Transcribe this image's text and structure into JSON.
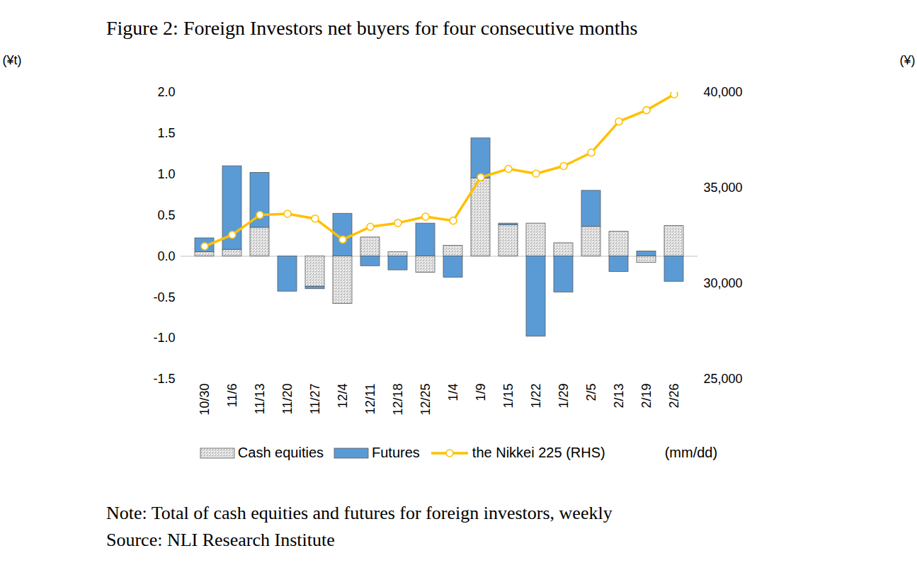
{
  "chart_data": {
    "type": "bar",
    "title": "Figure 2: Foreign Investors net buyers for four consecutive months",
    "stacked": true,
    "categories": [
      "10/30",
      "11/6",
      "11/13",
      "11/20",
      "11/27",
      "12/4",
      "12/11",
      "12/18",
      "12/25",
      "1/4",
      "1/9",
      "1/15",
      "1/22",
      "1/29",
      "2/5",
      "2/13",
      "2/19",
      "2/26"
    ],
    "series": [
      {
        "name": "Cash equities",
        "type": "bar",
        "color": "#bfbfbf",
        "values": [
          0.05,
          0.08,
          0.35,
          0.0,
          -0.37,
          -0.58,
          0.23,
          0.05,
          -0.2,
          0.13,
          0.95,
          0.38,
          0.4,
          0.16,
          0.36,
          0.3,
          -0.08,
          0.37
        ]
      },
      {
        "name": "Futures",
        "type": "bar",
        "color": "#5b9bd5",
        "values": [
          0.17,
          1.02,
          0.67,
          -0.43,
          -0.03,
          0.52,
          -0.12,
          -0.17,
          0.4,
          -0.26,
          0.49,
          0.02,
          -0.98,
          -0.44,
          0.44,
          -0.19,
          0.06,
          -0.31
        ]
      },
      {
        "name": "the Nikkei 225 (RHS)",
        "type": "line",
        "axis": "y2",
        "color": "#ffc000",
        "marker": "circle",
        "values": [
          31950,
          32550,
          33590,
          33650,
          33400,
          32300,
          32970,
          33170,
          33500,
          33290,
          35560,
          36000,
          35750,
          36150,
          36850,
          38480,
          39070,
          39900
        ]
      }
    ],
    "y_label": "(¥t)",
    "y2_label": "(¥)",
    "x_label": "(mm/dd)",
    "ylim": [
      -1.5,
      2.0
    ],
    "yticks": [
      {
        "value": -1.5,
        "label": "-1.5"
      },
      {
        "value": -1.0,
        "label": "-1.0"
      },
      {
        "value": -0.5,
        "label": "-0.5"
      },
      {
        "value": 0,
        "label": "0.0"
      },
      {
        "value": 0.5,
        "label": "0.5"
      },
      {
        "value": 1.0,
        "label": "1.0"
      },
      {
        "value": 1.5,
        "label": "1.5"
      },
      {
        "value": 2.0,
        "label": "2.0"
      }
    ],
    "y2lim": [
      25000,
      40000
    ],
    "y2ticks": [
      {
        "value": 25000,
        "label": "25,000"
      },
      {
        "value": 30000,
        "label": "30,000"
      },
      {
        "value": 35000,
        "label": "35,000"
      },
      {
        "value": 40000,
        "label": "40,000"
      }
    ],
    "legend": "bottom",
    "note": "Note: Total of cash equities and futures for foreign investors, weekly",
    "source": "Source: NLI Research Institute"
  }
}
